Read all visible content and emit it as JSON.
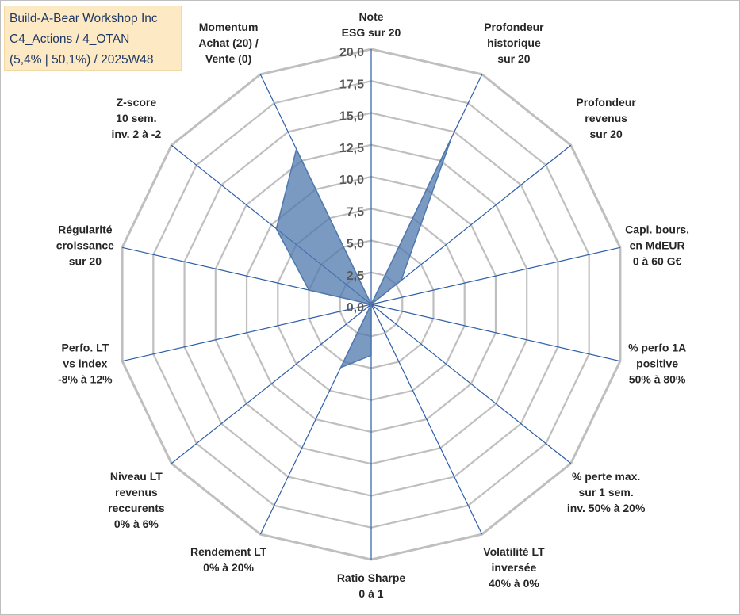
{
  "title_box": {
    "line1": "Build-A-Bear Workshop Inc",
    "line2": "C4_Actions / 4_OTAN",
    "line3": "(5,4% | 50,1%) / 2025W48"
  },
  "chart_data": {
    "type": "radar",
    "rmin": 0,
    "rmax": 20,
    "ticks": [
      "0,0",
      "2,5",
      "5,0",
      "7,5",
      "10,0",
      "12,5",
      "15,0",
      "17,5",
      "20,0"
    ],
    "axes": [
      {
        "name": "note",
        "lines": [
          "Note",
          "ESG sur 20"
        ]
      },
      {
        "name": "profondeur-historique",
        "lines": [
          "Profondeur",
          "historique",
          "sur 20"
        ]
      },
      {
        "name": "profondeur-revenus",
        "lines": [
          "Profondeur",
          "revenus",
          "sur 20"
        ]
      },
      {
        "name": "capi-bours",
        "lines": [
          "Capi. bours.",
          "en MdEUR",
          "0 à 60 G€"
        ]
      },
      {
        "name": "perfo-1a",
        "lines": [
          "% perfo 1A",
          "positive",
          "50% à 80%"
        ]
      },
      {
        "name": "perte-max",
        "lines": [
          "% perte max.",
          "sur 1 sem.",
          "inv. 50% à 20%"
        ]
      },
      {
        "name": "volatilite-lt",
        "lines": [
          "Volatilité LT",
          "inversée",
          "40% à 0%"
        ]
      },
      {
        "name": "ratio-sharpe",
        "lines": [
          "Ratio Sharpe",
          "0 à 1"
        ]
      },
      {
        "name": "rendement-lt",
        "lines": [
          "Rendement LT",
          "0% à 20%"
        ]
      },
      {
        "name": "niveau-lt-revenus",
        "lines": [
          "Niveau LT",
          "revenus",
          "reccurents",
          "0% à 6%"
        ]
      },
      {
        "name": "perfo-lt-vs-index",
        "lines": [
          "Perfo. LT",
          "vs index",
          "-8% à 12%"
        ]
      },
      {
        "name": "regularite-croissance",
        "lines": [
          "Régularité",
          "croissance",
          "sur 20"
        ]
      },
      {
        "name": "z-score",
        "lines": [
          "Z-score",
          "10 sem.",
          "inv. 2 à -2"
        ]
      },
      {
        "name": "momentum",
        "lines": [
          "Momentum",
          "Achat (20) /",
          "Vente (0)"
        ]
      }
    ],
    "series": [
      {
        "name": "Build-A-Bear Workshop Inc",
        "color": "#4f78ad",
        "values": [
          0,
          14.5,
          3,
          0,
          0,
          0,
          0,
          4,
          5.5,
          0,
          0,
          5,
          9.5,
          13.5
        ]
      }
    ],
    "grid_color": "#bfbfbf",
    "spoke_color": "#2e5ea8"
  }
}
